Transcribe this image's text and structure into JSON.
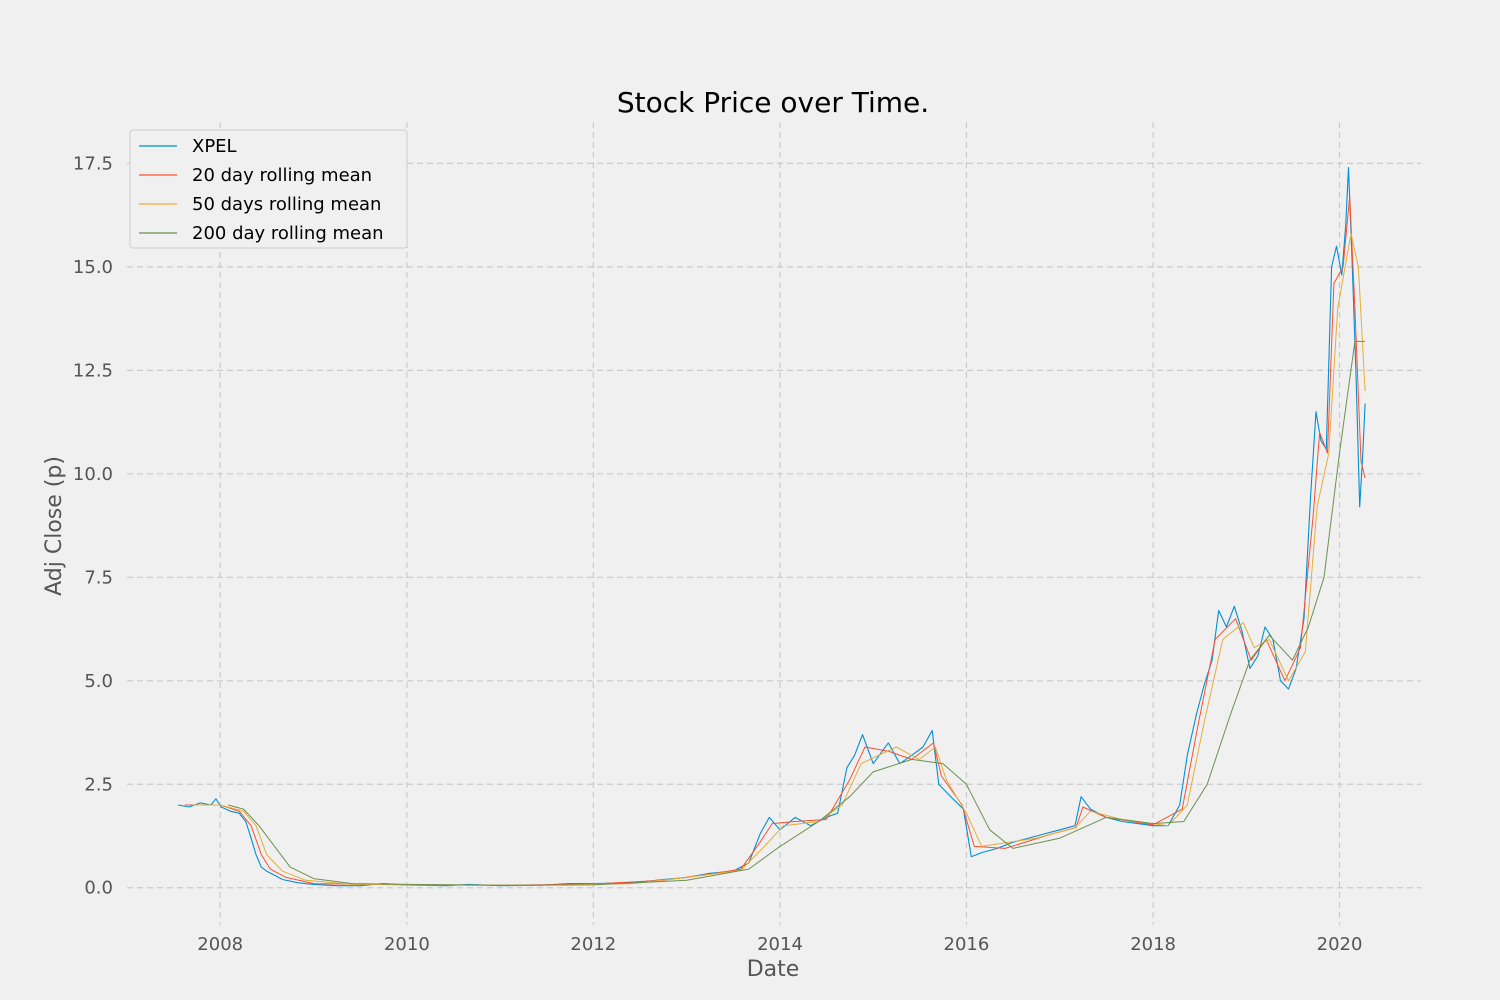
{
  "chart_data": {
    "type": "line",
    "title": "Stock Price over Time.",
    "xlabel": "Date",
    "ylabel": "Adj Close (p)",
    "xlim": [
      "2007-01-01",
      "2020-11-15"
    ],
    "ylim": [
      -0.9,
      18.5
    ],
    "x_ticks": [
      "2008-01-01",
      "2010-01-01",
      "2012-01-01",
      "2014-01-01",
      "2016-01-01",
      "2018-01-01",
      "2020-01-01"
    ],
    "x_tick_labels": [
      "2008",
      "2010",
      "2012",
      "2014",
      "2016",
      "2018",
      "2020"
    ],
    "y_ticks": [
      0.0,
      2.5,
      5.0,
      7.5,
      10.0,
      12.5,
      15.0,
      17.5
    ],
    "y_tick_labels": [
      "0.0",
      "2.5",
      "5.0",
      "7.5",
      "10.0",
      "12.5",
      "15.0",
      "17.5"
    ],
    "grid": true,
    "legend_position": "top-left",
    "series": [
      {
        "name": "XPEL",
        "color": "#008fd5",
        "points": [
          [
            "2007-07-20",
            2.0
          ],
          [
            "2007-09-01",
            1.95
          ],
          [
            "2007-10-15",
            2.05
          ],
          [
            "2007-11-25",
            2.0
          ],
          [
            "2007-12-15",
            2.15
          ],
          [
            "2008-01-05",
            1.95
          ],
          [
            "2008-02-10",
            1.85
          ],
          [
            "2008-03-15",
            1.8
          ],
          [
            "2008-04-10",
            1.6
          ],
          [
            "2008-05-01",
            1.2
          ],
          [
            "2008-05-20",
            0.8
          ],
          [
            "2008-06-10",
            0.5
          ],
          [
            "2008-07-01",
            0.4
          ],
          [
            "2008-08-01",
            0.3
          ],
          [
            "2008-09-01",
            0.2
          ],
          [
            "2008-11-01",
            0.12
          ],
          [
            "2009-01-01",
            0.08
          ],
          [
            "2009-04-01",
            0.05
          ],
          [
            "2009-07-01",
            0.05
          ],
          [
            "2009-10-01",
            0.1
          ],
          [
            "2010-01-01",
            0.07
          ],
          [
            "2010-06-01",
            0.05
          ],
          [
            "2010-09-01",
            0.08
          ],
          [
            "2011-01-01",
            0.05
          ],
          [
            "2011-06-01",
            0.06
          ],
          [
            "2011-10-01",
            0.1
          ],
          [
            "2012-01-01",
            0.1
          ],
          [
            "2012-06-01",
            0.12
          ],
          [
            "2012-10-01",
            0.2
          ],
          [
            "2013-01-01",
            0.25
          ],
          [
            "2013-04-01",
            0.35
          ],
          [
            "2013-07-01",
            0.4
          ],
          [
            "2013-09-01",
            0.6
          ],
          [
            "2013-10-15",
            1.3
          ],
          [
            "2013-11-20",
            1.7
          ],
          [
            "2014-01-01",
            1.4
          ],
          [
            "2014-03-01",
            1.7
          ],
          [
            "2014-05-01",
            1.5
          ],
          [
            "2014-07-01",
            1.7
          ],
          [
            "2014-08-15",
            1.8
          ],
          [
            "2014-09-20",
            2.9
          ],
          [
            "2014-10-20",
            3.2
          ],
          [
            "2014-11-20",
            3.7
          ],
          [
            "2015-01-01",
            3.0
          ],
          [
            "2015-03-01",
            3.5
          ],
          [
            "2015-04-15",
            3.0
          ],
          [
            "2015-06-01",
            3.2
          ],
          [
            "2015-07-15",
            3.4
          ],
          [
            "2015-08-20",
            3.8
          ],
          [
            "2015-09-15",
            2.5
          ],
          [
            "2015-11-01",
            2.2
          ],
          [
            "2015-12-20",
            1.9
          ],
          [
            "2016-01-20",
            0.75
          ],
          [
            "2016-03-01",
            0.85
          ],
          [
            "2016-05-01",
            0.95
          ],
          [
            "2016-07-01",
            1.1
          ],
          [
            "2016-09-01",
            1.2
          ],
          [
            "2016-11-01",
            1.3
          ],
          [
            "2017-01-01",
            1.4
          ],
          [
            "2017-03-01",
            1.5
          ],
          [
            "2017-03-25",
            2.2
          ],
          [
            "2017-05-01",
            1.9
          ],
          [
            "2017-07-01",
            1.7
          ],
          [
            "2017-09-01",
            1.6
          ],
          [
            "2017-11-01",
            1.55
          ],
          [
            "2018-01-01",
            1.5
          ],
          [
            "2018-03-01",
            1.5
          ],
          [
            "2018-04-15",
            2.0
          ],
          [
            "2018-05-15",
            3.2
          ],
          [
            "2018-06-20",
            4.2
          ],
          [
            "2018-07-20",
            4.9
          ],
          [
            "2018-08-20",
            5.5
          ],
          [
            "2018-09-15",
            6.7
          ],
          [
            "2018-10-15",
            6.3
          ],
          [
            "2018-11-15",
            6.8
          ],
          [
            "2018-12-15",
            6.2
          ],
          [
            "2019-01-15",
            5.3
          ],
          [
            "2019-02-15",
            5.6
          ],
          [
            "2019-03-15",
            6.3
          ],
          [
            "2019-04-15",
            6.0
          ],
          [
            "2019-05-15",
            5.0
          ],
          [
            "2019-06-15",
            4.8
          ],
          [
            "2019-07-15",
            5.3
          ],
          [
            "2019-08-15",
            6.5
          ],
          [
            "2019-09-10",
            9.5
          ],
          [
            "2019-10-01",
            11.5
          ],
          [
            "2019-10-20",
            10.8
          ],
          [
            "2019-11-10",
            10.6
          ],
          [
            "2019-12-01",
            15.0
          ],
          [
            "2019-12-20",
            15.5
          ],
          [
            "2020-01-10",
            14.8
          ],
          [
            "2020-01-25",
            16.0
          ],
          [
            "2020-02-05",
            17.4
          ],
          [
            "2020-02-20",
            15.0
          ],
          [
            "2020-03-05",
            12.5
          ],
          [
            "2020-03-20",
            9.2
          ],
          [
            "2020-04-01",
            10.5
          ],
          [
            "2020-04-10",
            11.7
          ]
        ]
      },
      {
        "name": "20 day rolling mean",
        "color": "#fc4f30",
        "points": [
          [
            "2007-08-15",
            2.0
          ],
          [
            "2007-11-01",
            2.0
          ],
          [
            "2008-01-01",
            2.0
          ],
          [
            "2008-03-15",
            1.85
          ],
          [
            "2008-05-01",
            1.5
          ],
          [
            "2008-06-10",
            0.8
          ],
          [
            "2008-07-15",
            0.45
          ],
          [
            "2008-09-15",
            0.25
          ],
          [
            "2009-01-01",
            0.1
          ],
          [
            "2010-01-01",
            0.07
          ],
          [
            "2011-01-01",
            0.06
          ],
          [
            "2012-01-01",
            0.09
          ],
          [
            "2012-10-01",
            0.18
          ],
          [
            "2013-04-01",
            0.33
          ],
          [
            "2013-08-01",
            0.45
          ],
          [
            "2013-10-15",
            1.1
          ],
          [
            "2013-12-01",
            1.55
          ],
          [
            "2014-03-01",
            1.6
          ],
          [
            "2014-07-01",
            1.65
          ],
          [
            "2014-09-30",
            2.6
          ],
          [
            "2014-11-30",
            3.4
          ],
          [
            "2015-03-01",
            3.3
          ],
          [
            "2015-06-01",
            3.1
          ],
          [
            "2015-08-25",
            3.5
          ],
          [
            "2015-09-25",
            2.7
          ],
          [
            "2015-12-15",
            2.0
          ],
          [
            "2016-02-01",
            1.0
          ],
          [
            "2016-06-01",
            0.95
          ],
          [
            "2016-12-01",
            1.3
          ],
          [
            "2017-03-05",
            1.45
          ],
          [
            "2017-04-01",
            1.95
          ],
          [
            "2017-07-01",
            1.7
          ],
          [
            "2018-01-01",
            1.52
          ],
          [
            "2018-04-25",
            1.9
          ],
          [
            "2018-06-25",
            3.9
          ],
          [
            "2018-09-01",
            6.0
          ],
          [
            "2018-11-20",
            6.5
          ],
          [
            "2019-01-20",
            5.5
          ],
          [
            "2019-03-20",
            6.0
          ],
          [
            "2019-06-01",
            5.0
          ],
          [
            "2019-08-01",
            5.8
          ],
          [
            "2019-09-20",
            9.0
          ],
          [
            "2019-10-15",
            11.0
          ],
          [
            "2019-11-15",
            10.5
          ],
          [
            "2019-12-10",
            14.6
          ],
          [
            "2020-01-15",
            15.0
          ],
          [
            "2020-02-10",
            16.7
          ],
          [
            "2020-03-01",
            14.0
          ],
          [
            "2020-03-25",
            10.3
          ],
          [
            "2020-04-10",
            9.9
          ]
        ]
      },
      {
        "name": "50 days rolling mean",
        "color": "#e5ae38",
        "points": [
          [
            "2007-09-15",
            2.0
          ],
          [
            "2008-01-01",
            2.0
          ],
          [
            "2008-04-01",
            1.85
          ],
          [
            "2008-05-20",
            1.5
          ],
          [
            "2008-07-01",
            0.8
          ],
          [
            "2008-09-01",
            0.4
          ],
          [
            "2008-12-01",
            0.18
          ],
          [
            "2009-06-01",
            0.08
          ],
          [
            "2010-06-01",
            0.07
          ],
          [
            "2011-06-01",
            0.06
          ],
          [
            "2012-06-01",
            0.1
          ],
          [
            "2013-01-01",
            0.25
          ],
          [
            "2013-08-01",
            0.42
          ],
          [
            "2013-11-01",
            1.0
          ],
          [
            "2014-01-15",
            1.5
          ],
          [
            "2014-06-01",
            1.6
          ],
          [
            "2014-09-01",
            2.0
          ],
          [
            "2014-11-15",
            3.0
          ],
          [
            "2015-04-01",
            3.4
          ],
          [
            "2015-07-01",
            3.1
          ],
          [
            "2015-09-01",
            3.4
          ],
          [
            "2015-10-15",
            2.6
          ],
          [
            "2016-01-01",
            1.8
          ],
          [
            "2016-03-01",
            1.0
          ],
          [
            "2016-10-01",
            1.2
          ],
          [
            "2017-03-01",
            1.45
          ],
          [
            "2017-05-01",
            1.85
          ],
          [
            "2017-09-01",
            1.65
          ],
          [
            "2018-03-01",
            1.5
          ],
          [
            "2018-05-15",
            2.0
          ],
          [
            "2018-07-20",
            4.0
          ],
          [
            "2018-10-01",
            6.0
          ],
          [
            "2018-12-20",
            6.4
          ],
          [
            "2019-02-01",
            5.8
          ],
          [
            "2019-04-01",
            6.0
          ],
          [
            "2019-06-15",
            5.0
          ],
          [
            "2019-08-20",
            5.7
          ],
          [
            "2019-10-05",
            9.2
          ],
          [
            "2019-11-20",
            10.5
          ],
          [
            "2019-12-25",
            14.0
          ],
          [
            "2020-02-15",
            15.8
          ],
          [
            "2020-03-15",
            15.0
          ],
          [
            "2020-04-10",
            12.0
          ]
        ]
      },
      {
        "name": "200 day rolling mean",
        "color": "#6d904f",
        "points": [
          [
            "2008-02-01",
            2.0
          ],
          [
            "2008-04-01",
            1.9
          ],
          [
            "2008-06-01",
            1.5
          ],
          [
            "2008-08-01",
            1.0
          ],
          [
            "2008-10-01",
            0.5
          ],
          [
            "2009-01-01",
            0.22
          ],
          [
            "2009-06-01",
            0.1
          ],
          [
            "2010-01-01",
            0.08
          ],
          [
            "2011-01-01",
            0.06
          ],
          [
            "2012-01-01",
            0.07
          ],
          [
            "2013-01-01",
            0.18
          ],
          [
            "2013-09-01",
            0.45
          ],
          [
            "2014-01-01",
            1.0
          ],
          [
            "2014-06-01",
            1.6
          ],
          [
            "2014-10-01",
            2.2
          ],
          [
            "2015-01-01",
            2.8
          ],
          [
            "2015-06-01",
            3.1
          ],
          [
            "2015-10-01",
            3.0
          ],
          [
            "2016-01-01",
            2.5
          ],
          [
            "2016-04-01",
            1.4
          ],
          [
            "2016-07-01",
            0.95
          ],
          [
            "2017-01-01",
            1.2
          ],
          [
            "2017-07-01",
            1.7
          ],
          [
            "2018-01-01",
            1.55
          ],
          [
            "2018-05-01",
            1.6
          ],
          [
            "2018-08-01",
            2.5
          ],
          [
            "2018-11-01",
            4.2
          ],
          [
            "2019-01-15",
            5.5
          ],
          [
            "2019-04-01",
            6.1
          ],
          [
            "2019-07-01",
            5.5
          ],
          [
            "2019-09-01",
            6.3
          ],
          [
            "2019-11-01",
            7.5
          ],
          [
            "2020-01-01",
            10.5
          ],
          [
            "2020-03-01",
            13.2
          ],
          [
            "2020-04-10",
            13.2
          ]
        ]
      }
    ]
  }
}
